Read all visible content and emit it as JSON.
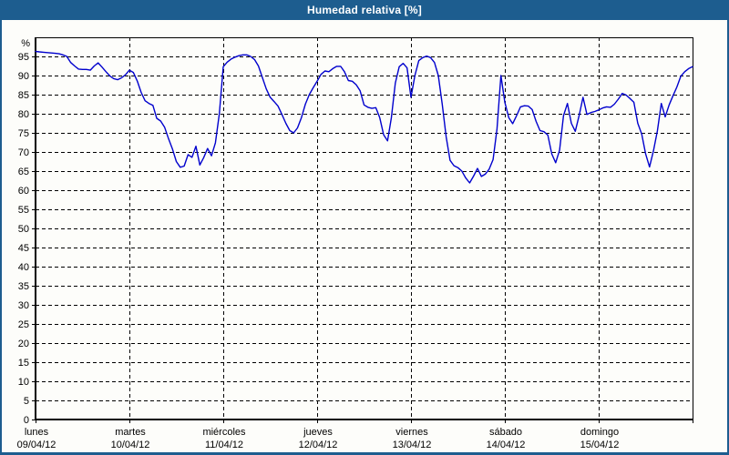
{
  "window": {
    "title": "Humedad relativa [%]"
  },
  "colors": {
    "titlebar_bg": "#1d5d8f",
    "frame_border": "#1d5d8f",
    "panel_bg": "#fdfdfa",
    "line": "#0000cd",
    "grid": "#000000",
    "text": "#000000"
  },
  "chart_data": {
    "type": "line",
    "title": "Humedad relativa [%]",
    "xlabel": "",
    "ylabel": "%",
    "ylim": [
      0,
      100
    ],
    "yticks": [
      0,
      5,
      10,
      15,
      20,
      25,
      30,
      35,
      40,
      45,
      50,
      55,
      60,
      65,
      70,
      75,
      80,
      85,
      90,
      95
    ],
    "grid": true,
    "grid_style": "dashed",
    "legend_position": "none",
    "x_unit": "hours",
    "x_range_hours": [
      0,
      168
    ],
    "day_ticks": [
      {
        "label": "lunes",
        "date": "09/04/12"
      },
      {
        "label": "martes",
        "date": "10/04/12"
      },
      {
        "label": "miércoles",
        "date": "11/04/12"
      },
      {
        "label": "jueves",
        "date": "12/04/12"
      },
      {
        "label": "viernes",
        "date": "13/04/12"
      },
      {
        "label": "sábado",
        "date": "14/04/12"
      },
      {
        "label": "domingo",
        "date": "15/04/12"
      }
    ],
    "series": [
      {
        "name": "Humedad relativa [%]",
        "color": "#0000cd",
        "step_hours": 1,
        "values": [
          96.3,
          96.2,
          96.1,
          96.0,
          95.9,
          95.8,
          95.7,
          95.4,
          95.0,
          93.4,
          92.5,
          91.7,
          91.6,
          91.6,
          91.4,
          92.5,
          93.3,
          92.2,
          91.0,
          89.9,
          89.2,
          88.9,
          89.4,
          90.2,
          91.4,
          90.8,
          88.6,
          85.6,
          83.4,
          82.7,
          82.2,
          78.8,
          78.1,
          76.5,
          73.5,
          70.8,
          67.5,
          66.0,
          66.3,
          69.3,
          68.6,
          71.5,
          66.6,
          68.5,
          70.9,
          69.0,
          72.4,
          80.0,
          92.3,
          93.5,
          94.3,
          94.8,
          95.2,
          95.4,
          95.4,
          95.0,
          94.2,
          92.5,
          89.5,
          86.5,
          84.3,
          83.2,
          82.0,
          79.8,
          77.5,
          75.6,
          75.0,
          76.3,
          79.0,
          82.5,
          85.0,
          86.8,
          88.5,
          90.3,
          91.2,
          91.0,
          91.8,
          92.4,
          92.4,
          91.0,
          88.7,
          88.5,
          87.6,
          86.0,
          82.3,
          81.7,
          81.4,
          81.6,
          79.0,
          74.5,
          72.9,
          79.0,
          88.0,
          92.3,
          93.2,
          92.0,
          84.3,
          90.0,
          93.9,
          94.7,
          95.1,
          94.7,
          93.4,
          90.0,
          82.5,
          74.0,
          67.8,
          66.4,
          65.9,
          65.0,
          63.2,
          61.9,
          63.7,
          65.7,
          63.6,
          64.2,
          65.5,
          68.0,
          76.0,
          90.0,
          83.0,
          79.0,
          77.4,
          79.5,
          81.8,
          82.1,
          82.0,
          81.1,
          78.0,
          75.6,
          75.3,
          74.4,
          69.5,
          67.2,
          70.5,
          79.5,
          82.7,
          77.5,
          75.4,
          79.5,
          84.3,
          79.8,
          80.3,
          80.6,
          81.0,
          81.5,
          81.8,
          81.7,
          82.5,
          83.8,
          85.3,
          84.9,
          84.0,
          83.0,
          77.5,
          74.7,
          69.5,
          66.1,
          70.3,
          75.5,
          82.7,
          79.2,
          82.3,
          84.7,
          87.0,
          89.8,
          91.0,
          91.8,
          92.3
        ]
      }
    ]
  }
}
